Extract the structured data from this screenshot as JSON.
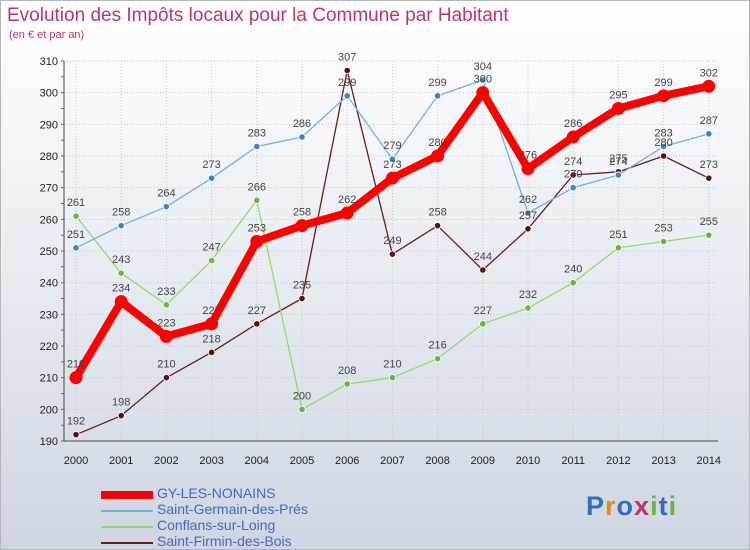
{
  "header": {
    "title": "Evolution des Impôts locaux pour la Commune par Habitant",
    "subtitle": "(en € et par an)"
  },
  "brand": {
    "logo_text": "Proxiti",
    "letters": [
      {
        "ch": "P",
        "color": "#2f6fbf"
      },
      {
        "ch": "r",
        "color": "#e8871c"
      },
      {
        "ch": "o",
        "color": "#2f6fbf"
      },
      {
        "ch": "x",
        "color": "#c0336e"
      },
      {
        "ch": "i",
        "color": "#6db33f"
      },
      {
        "ch": "t",
        "color": "#2f6fbf"
      },
      {
        "ch": "i",
        "color": "#6db33f"
      }
    ]
  },
  "chart_data": {
    "type": "line",
    "title": "Evolution des Impôts locaux pour la Commune par Habitant",
    "subtitle": "(en € et par an)",
    "xlabel": "",
    "ylabel": "",
    "x": [
      "2000",
      "2001",
      "2002",
      "2003",
      "2004",
      "2005",
      "2006",
      "2007",
      "2008",
      "2009",
      "2010",
      "2011",
      "2012",
      "2013",
      "2014"
    ],
    "ylim": [
      190,
      310
    ],
    "yticks": [
      190,
      200,
      210,
      220,
      230,
      240,
      250,
      260,
      270,
      280,
      290,
      300,
      310
    ],
    "grid": true,
    "legend_position": "bottom-left",
    "series": [
      {
        "name": "Saint-Firmin-des-Bois",
        "color": "#6b1b1b",
        "dot": "#5a1010",
        "values": [
          192,
          198,
          210,
          218,
          227,
          235,
          307,
          249,
          258,
          244,
          257,
          274,
          275,
          280,
          273
        ]
      },
      {
        "name": "Conflans-sur-Loing",
        "color": "#99d66b",
        "dot": "#6db33f",
        "values": [
          261,
          243,
          233,
          247,
          266,
          200,
          208,
          210,
          216,
          227,
          232,
          240,
          251,
          253,
          255
        ]
      },
      {
        "name": "Saint-Germain-des-Prés",
        "color": "#7aaee0",
        "dot": "#3a85c8",
        "values": [
          251,
          258,
          264,
          273,
          283,
          286,
          299,
          279,
          299,
          304,
          262,
          270,
          274,
          283,
          287
        ]
      },
      {
        "name": "GY-LES-NONAINS",
        "color": "#ff0000",
        "dot": "#ff0000",
        "values": [
          210,
          234,
          223,
          227,
          253,
          258,
          262,
          273,
          280,
          300,
          276,
          286,
          295,
          299,
          302
        ]
      }
    ],
    "legend_order": [
      3,
      2,
      1,
      0
    ]
  }
}
